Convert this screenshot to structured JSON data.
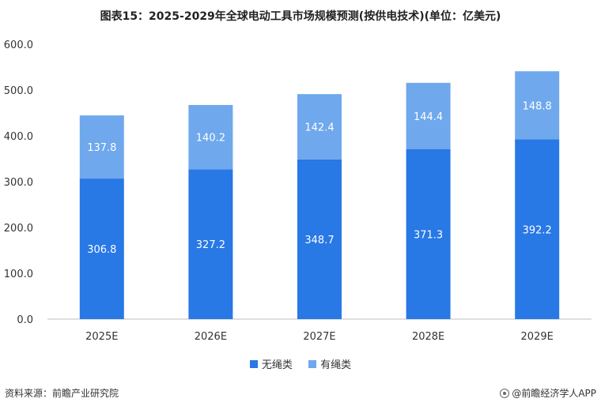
{
  "title": "图表15：2025-2029年全球电动工具市场规模预测(按供电技术)(单位：亿美元)",
  "footer": {
    "source": "资料来源：前瞻产业研究院",
    "brand": "@前瞻经济学人APP"
  },
  "colors": {
    "series1": "#2878e6",
    "series2": "#6fa8ec",
    "axis": "#bfbfbf"
  },
  "chart_data": {
    "type": "bar",
    "stacked": true,
    "categories": [
      "2025E",
      "2026E",
      "2027E",
      "2028E",
      "2029E"
    ],
    "series": [
      {
        "name": "无绳类",
        "values": [
          306.8,
          327.2,
          348.7,
          371.3,
          392.2
        ]
      },
      {
        "name": "有绳类",
        "values": [
          137.8,
          140.2,
          142.4,
          144.4,
          148.8
        ]
      }
    ],
    "yticks": [
      "0.0",
      "100.0",
      "200.0",
      "300.0",
      "400.0",
      "500.0",
      "600.0"
    ],
    "ylim": [
      0,
      600
    ],
    "grid": false,
    "legend": "bottom"
  }
}
